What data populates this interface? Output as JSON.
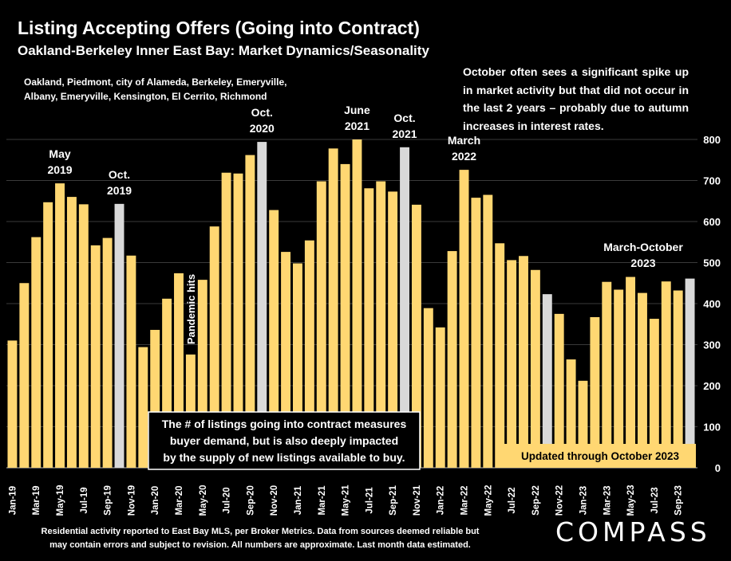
{
  "header": {
    "title": "Listing Accepting Offers (Going into Contract)",
    "subtitle": "Oakland-Berkeley Inner East Bay: Market Dynamics/Seasonality",
    "region_note_lines": [
      "Oakland, Piedmont, city of Alameda, Berkeley, Emeryville,",
      "Albany, Emeryville, Kensington, El Cerrito, Richmond"
    ]
  },
  "trend_note": "October often sees a significant spike up in market activity but that did not occur in the last 2 years – probably due to autumn increases in  interest rates.",
  "footer_lines": [
    "Residential activity reported to East Bay MLS, per Broker Metrics. Data from sources deemed reliable but",
    "may contain errors and subject to revision. All numbers are approximate. Last month data estimated."
  ],
  "brand": {
    "logo_text": "COMPASS"
  },
  "chart_data": {
    "type": "bar",
    "categories": [
      "Jan-19",
      "Feb-19",
      "Mar-19",
      "Apr-19",
      "May-19",
      "Jun-19",
      "Jul-19",
      "Aug-19",
      "Sep-19",
      "Oct-19",
      "Nov-19",
      "Dec-19",
      "Jan-20",
      "Feb-20",
      "Mar-20",
      "Apr-20",
      "May-20",
      "Jun-20",
      "Jul-20",
      "Aug-20",
      "Sep-20",
      "Oct-20",
      "Nov-20",
      "Dec-20",
      "Jan-21",
      "Feb-21",
      "Mar-21",
      "Apr-21",
      "May-21",
      "Jun-21",
      "Jul-21",
      "Aug-21",
      "Sep-21",
      "Oct-21",
      "Nov-21",
      "Dec-21",
      "Jan-22",
      "Feb-22",
      "Mar-22",
      "Apr-22",
      "May-22",
      "Jun-22",
      "Jul-22",
      "Aug-22",
      "Sep-22",
      "Oct-22",
      "Nov-22",
      "Dec-22",
      "Jan-23",
      "Feb-23",
      "Mar-23",
      "Apr-23",
      "May-23",
      "Jun-23",
      "Jul-23",
      "Aug-23",
      "Sep-23",
      "Oct-23"
    ],
    "values": [
      310,
      450,
      562,
      647,
      693,
      660,
      642,
      542,
      560,
      643,
      517,
      294,
      336,
      412,
      474,
      276,
      458,
      588,
      719,
      717,
      762,
      794,
      628,
      526,
      498,
      554,
      698,
      778,
      740,
      800,
      681,
      698,
      673,
      781,
      641,
      389,
      342,
      528,
      726,
      658,
      665,
      547,
      506,
      516,
      482,
      423,
      375,
      264,
      212,
      367,
      453,
      434,
      465,
      426,
      363,
      454,
      432,
      461
    ],
    "highlight_months": [
      "Oct-19",
      "Oct-20",
      "Oct-21",
      "Oct-22",
      "Oct-23"
    ],
    "tick_labels": [
      "Jan-19",
      "Mar-19",
      "May-19",
      "Jul-19",
      "Sep-19",
      "Nov-19",
      "Jan-20",
      "Mar-20",
      "May-20",
      "Jul-20",
      "Sep-20",
      "Nov-20",
      "Jan-21",
      "Mar-21",
      "May-21",
      "Jul-21",
      "Sep-21",
      "Nov-21",
      "Jan-22",
      "Mar-22",
      "May-22",
      "Jul-22",
      "Sep-22",
      "Nov-22",
      "Jan-23",
      "Mar-23",
      "May-23",
      "Jul-23",
      "Sep-23"
    ],
    "y_ticks": [
      0,
      100,
      200,
      300,
      400,
      500,
      600,
      700,
      800
    ],
    "ylim": [
      0,
      800
    ],
    "y_axis_side": "right",
    "colors": {
      "bar": "#ffd772",
      "highlight": "#d9d9d9",
      "grid": "#3a3a3a",
      "background": "#000000"
    },
    "annotations": {
      "peak_labels": [
        {
          "lines": [
            "May",
            "2019"
          ],
          "month": "May-19"
        },
        {
          "lines": [
            "Oct.",
            "2019"
          ],
          "month": "Oct-19"
        },
        {
          "lines": [
            "Oct.",
            "2020"
          ],
          "month": "Oct-20"
        },
        {
          "lines": [
            "June",
            "2021"
          ],
          "month": "Jun-21"
        },
        {
          "lines": [
            "Oct.",
            "2021"
          ],
          "month": "Oct-21"
        },
        {
          "lines": [
            "March",
            "2022"
          ],
          "month": "Mar-22"
        },
        {
          "lines": [
            "March-October",
            "2023"
          ],
          "month": "Jun-23"
        }
      ],
      "pandemic_label": "Pandemic hits",
      "demand_box_lines": [
        "The # of listings going into contract measures",
        "buyer demand, but is also deeply impacted",
        "by the supply of new listings available to buy."
      ],
      "updated_label": "Updated through October 2023"
    }
  }
}
